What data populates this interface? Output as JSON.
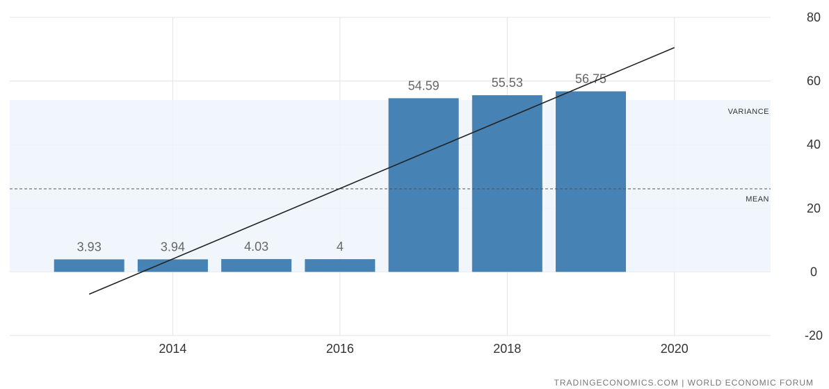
{
  "chart_data": {
    "type": "bar",
    "x": [
      2013,
      2014,
      2015,
      2016,
      2017,
      2018,
      2019
    ],
    "values": [
      3.93,
      3.94,
      4.03,
      4,
      54.59,
      55.53,
      56.75
    ],
    "data_labels": [
      "3.93",
      "3.94",
      "4.03",
      "4",
      "54.59",
      "55.53",
      "56.75"
    ],
    "x_ticks": [
      "2014",
      "2016",
      "2018",
      "2020"
    ],
    "y_ticks": [
      "80",
      "60",
      "40",
      "20",
      "0",
      "-20"
    ],
    "ylim": [
      -20,
      80
    ],
    "xlim": [
      2012.05,
      2021.15
    ],
    "y_axis_side": "right",
    "grid": true,
    "bar_color": "#4682b4",
    "trend_line": {
      "from": [
        2013,
        -7
      ],
      "to": [
        2020,
        70.5
      ]
    },
    "variance_band": {
      "label": "VARIANCE",
      "from": 0,
      "to": 54
    },
    "mean_line": {
      "label": "MEAN",
      "value": 26.1
    }
  },
  "source": "TRADINGECONOMICS.COM | WORLD ECONOMIC FORUM"
}
